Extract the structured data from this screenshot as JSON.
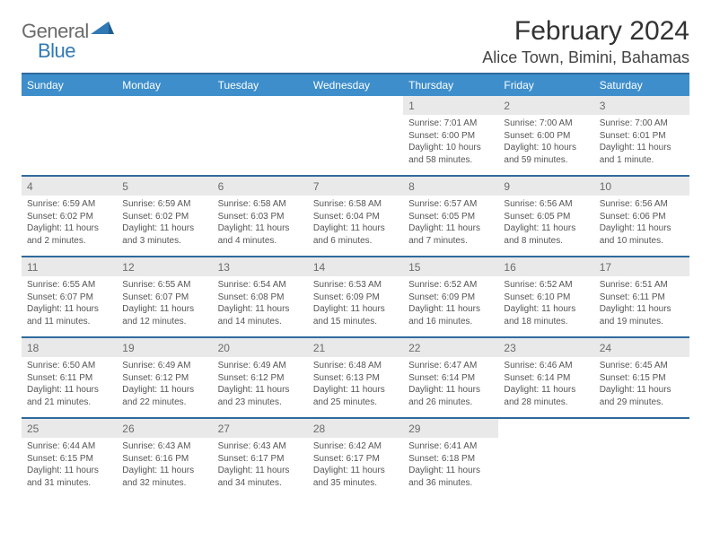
{
  "logo": {
    "text_a": "General",
    "text_b": "Blue",
    "gray": "#6b6b6b",
    "blue": "#3179b5"
  },
  "title": "February 2024",
  "location": "Alice Town, Bimini, Bahamas",
  "colors": {
    "header_bg": "#3d8ecb",
    "header_border": "#2f6a9e",
    "daynum_bg": "#e9e9e9",
    "text_dark": "#333333",
    "text_mid": "#555555",
    "text_light": "#6b6b6b"
  },
  "daynames": [
    "Sunday",
    "Monday",
    "Tuesday",
    "Wednesday",
    "Thursday",
    "Friday",
    "Saturday"
  ],
  "weeks": [
    {
      "nums": [
        "",
        "",
        "",
        "",
        "1",
        "2",
        "3"
      ],
      "info": [
        "",
        "",
        "",
        "",
        "Sunrise: 7:01 AM\nSunset: 6:00 PM\nDaylight: 10 hours and 58 minutes.",
        "Sunrise: 7:00 AM\nSunset: 6:00 PM\nDaylight: 10 hours and 59 minutes.",
        "Sunrise: 7:00 AM\nSunset: 6:01 PM\nDaylight: 11 hours and 1 minute."
      ]
    },
    {
      "nums": [
        "4",
        "5",
        "6",
        "7",
        "8",
        "9",
        "10"
      ],
      "info": [
        "Sunrise: 6:59 AM\nSunset: 6:02 PM\nDaylight: 11 hours and 2 minutes.",
        "Sunrise: 6:59 AM\nSunset: 6:02 PM\nDaylight: 11 hours and 3 minutes.",
        "Sunrise: 6:58 AM\nSunset: 6:03 PM\nDaylight: 11 hours and 4 minutes.",
        "Sunrise: 6:58 AM\nSunset: 6:04 PM\nDaylight: 11 hours and 6 minutes.",
        "Sunrise: 6:57 AM\nSunset: 6:05 PM\nDaylight: 11 hours and 7 minutes.",
        "Sunrise: 6:56 AM\nSunset: 6:05 PM\nDaylight: 11 hours and 8 minutes.",
        "Sunrise: 6:56 AM\nSunset: 6:06 PM\nDaylight: 11 hours and 10 minutes."
      ]
    },
    {
      "nums": [
        "11",
        "12",
        "13",
        "14",
        "15",
        "16",
        "17"
      ],
      "info": [
        "Sunrise: 6:55 AM\nSunset: 6:07 PM\nDaylight: 11 hours and 11 minutes.",
        "Sunrise: 6:55 AM\nSunset: 6:07 PM\nDaylight: 11 hours and 12 minutes.",
        "Sunrise: 6:54 AM\nSunset: 6:08 PM\nDaylight: 11 hours and 14 minutes.",
        "Sunrise: 6:53 AM\nSunset: 6:09 PM\nDaylight: 11 hours and 15 minutes.",
        "Sunrise: 6:52 AM\nSunset: 6:09 PM\nDaylight: 11 hours and 16 minutes.",
        "Sunrise: 6:52 AM\nSunset: 6:10 PM\nDaylight: 11 hours and 18 minutes.",
        "Sunrise: 6:51 AM\nSunset: 6:11 PM\nDaylight: 11 hours and 19 minutes."
      ]
    },
    {
      "nums": [
        "18",
        "19",
        "20",
        "21",
        "22",
        "23",
        "24"
      ],
      "info": [
        "Sunrise: 6:50 AM\nSunset: 6:11 PM\nDaylight: 11 hours and 21 minutes.",
        "Sunrise: 6:49 AM\nSunset: 6:12 PM\nDaylight: 11 hours and 22 minutes.",
        "Sunrise: 6:49 AM\nSunset: 6:12 PM\nDaylight: 11 hours and 23 minutes.",
        "Sunrise: 6:48 AM\nSunset: 6:13 PM\nDaylight: 11 hours and 25 minutes.",
        "Sunrise: 6:47 AM\nSunset: 6:14 PM\nDaylight: 11 hours and 26 minutes.",
        "Sunrise: 6:46 AM\nSunset: 6:14 PM\nDaylight: 11 hours and 28 minutes.",
        "Sunrise: 6:45 AM\nSunset: 6:15 PM\nDaylight: 11 hours and 29 minutes."
      ]
    },
    {
      "nums": [
        "25",
        "26",
        "27",
        "28",
        "29",
        "",
        ""
      ],
      "info": [
        "Sunrise: 6:44 AM\nSunset: 6:15 PM\nDaylight: 11 hours and 31 minutes.",
        "Sunrise: 6:43 AM\nSunset: 6:16 PM\nDaylight: 11 hours and 32 minutes.",
        "Sunrise: 6:43 AM\nSunset: 6:17 PM\nDaylight: 11 hours and 34 minutes.",
        "Sunrise: 6:42 AM\nSunset: 6:17 PM\nDaylight: 11 hours and 35 minutes.",
        "Sunrise: 6:41 AM\nSunset: 6:18 PM\nDaylight: 11 hours and 36 minutes.",
        "",
        ""
      ]
    }
  ]
}
